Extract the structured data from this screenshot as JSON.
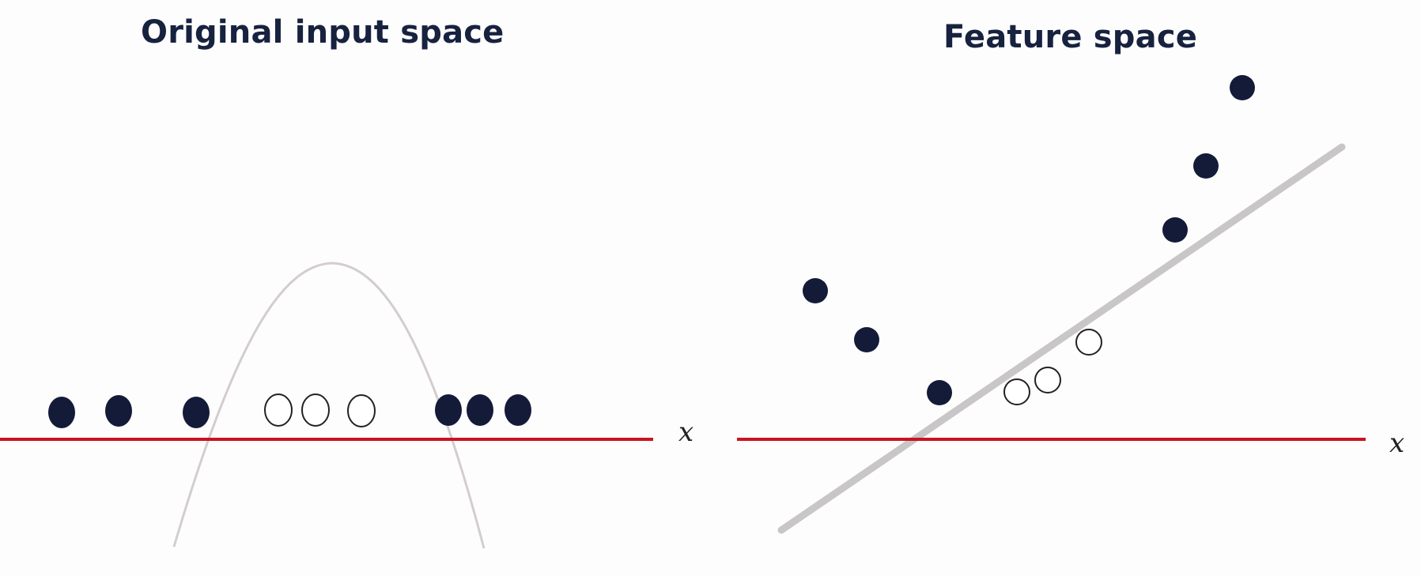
{
  "left_panel": {
    "title": "Original input space",
    "axis_label": "x",
    "points": [
      {
        "class": "filled"
      },
      {
        "class": "filled"
      },
      {
        "class": "filled"
      },
      {
        "class": "open"
      },
      {
        "class": "open"
      },
      {
        "class": "open"
      },
      {
        "class": "filled"
      },
      {
        "class": "filled"
      },
      {
        "class": "filled"
      }
    ]
  },
  "right_panel": {
    "title": "Feature space",
    "axis_label": "x",
    "points": [
      {
        "class": "filled"
      },
      {
        "class": "filled"
      },
      {
        "class": "filled"
      },
      {
        "class": "open"
      },
      {
        "class": "open"
      },
      {
        "class": "open"
      },
      {
        "class": "filled"
      },
      {
        "class": "filled"
      },
      {
        "class": "filled"
      }
    ]
  },
  "colors": {
    "title": "#17223f",
    "filled_point": "#141b38",
    "open_point_stroke": "#222222",
    "axis_line": "#c8141f",
    "curve": "#d3cdd0",
    "separator_line": "#c9c6c8"
  }
}
